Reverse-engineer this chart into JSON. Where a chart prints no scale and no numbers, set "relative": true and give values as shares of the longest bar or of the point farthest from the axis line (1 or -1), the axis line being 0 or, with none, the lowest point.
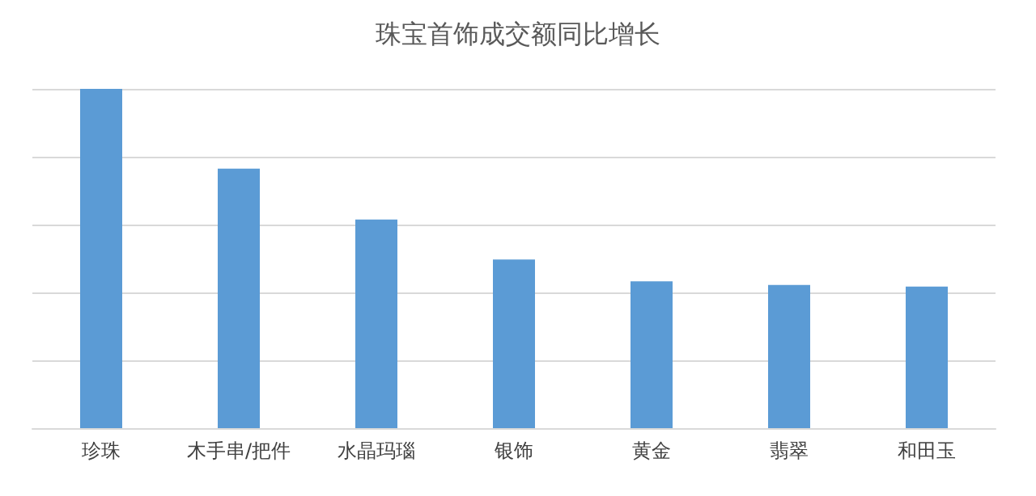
{
  "chart_data": {
    "type": "bar",
    "title": "珠宝首饰成交额同比增长",
    "categories": [
      "珍珠",
      "木手串/把件",
      "水晶玛瑙",
      "银饰",
      "黄金",
      "翡翠",
      "和田玉"
    ],
    "values": [
      1,
      0.765,
      0.615,
      0.497,
      0.433,
      0.422,
      0.417
    ],
    "color": "#5b9bd5",
    "relative": true,
    "grid": "y"
  }
}
